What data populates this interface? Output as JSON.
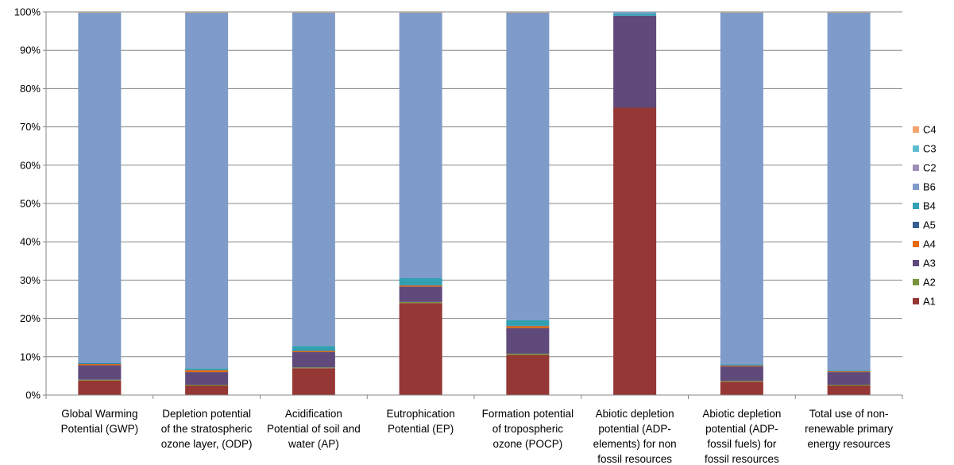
{
  "chart_data": {
    "type": "bar",
    "stacked": true,
    "percent": true,
    "ylim": [
      0,
      100
    ],
    "y_ticks": [
      "0%",
      "10%",
      "20%",
      "30%",
      "40%",
      "50%",
      "60%",
      "70%",
      "80%",
      "90%",
      "100%"
    ],
    "grid": true,
    "legend_position": "right",
    "categories": [
      [
        "Global Warming",
        "Potential (GWP)"
      ],
      [
        "Depletion potential",
        "of the stratospheric",
        "ozone layer,  (ODP)"
      ],
      [
        "Acidification",
        "Potential of soil and",
        "water (AP)"
      ],
      [
        "Eutrophication",
        "Potential (EP)"
      ],
      [
        "Formation potential",
        "of tropospheric",
        "ozone (POCP)"
      ],
      [
        "Abiotic depletion",
        "potential (ADP-",
        "elements) for non",
        "fossil resources"
      ],
      [
        "Abiotic depletion",
        "potential (ADP-",
        "fossil fuels) for",
        "fossil resources"
      ],
      [
        "Total use of non-",
        "renewable primary",
        "energy  resources"
      ]
    ],
    "series": [
      {
        "name": "A1",
        "color": "#953735",
        "values": [
          3.8,
          2.5,
          7.0,
          24.0,
          10.5,
          75.0,
          3.5,
          2.5
        ]
      },
      {
        "name": "A2",
        "color": "#77933c",
        "values": [
          0.2,
          0.2,
          0.2,
          0.3,
          0.3,
          0.0,
          0.2,
          0.2
        ]
      },
      {
        "name": "A3",
        "color": "#604a7b",
        "values": [
          3.8,
          3.3,
          4.0,
          4.0,
          6.7,
          24.0,
          3.8,
          3.3
        ]
      },
      {
        "name": "A4",
        "color": "#e46c0a",
        "values": [
          0.3,
          0.5,
          0.3,
          0.3,
          0.5,
          0.0,
          0.2,
          0.2
        ]
      },
      {
        "name": "A5",
        "color": "#376092",
        "values": [
          0.1,
          0.1,
          0.1,
          0.1,
          0.1,
          0.0,
          0.1,
          0.1
        ]
      },
      {
        "name": "B4",
        "color": "#31a0b3",
        "values": [
          0.2,
          0.4,
          1.2,
          1.8,
          1.4,
          0.5,
          0.2,
          0.2
        ]
      },
      {
        "name": "B6",
        "color": "#7f9bc9",
        "values": [
          91.4,
          92.8,
          86.9,
          69.2,
          80.2,
          0.4,
          91.7,
          93.3
        ]
      },
      {
        "name": "C2",
        "color": "#9e8fb8",
        "values": [
          0.1,
          0.1,
          0.1,
          0.1,
          0.1,
          0.0,
          0.1,
          0.1
        ]
      },
      {
        "name": "C3",
        "color": "#5cbcd1",
        "values": [
          0.05,
          0.05,
          0.1,
          0.1,
          0.2,
          0.1,
          0.1,
          0.05
        ]
      },
      {
        "name": "C4",
        "color": "#f4a46c",
        "values": [
          0.05,
          0.05,
          0.1,
          0.1,
          0.1,
          0.0,
          0.1,
          0.05
        ]
      }
    ],
    "legend_order": [
      "C4",
      "C3",
      "C2",
      "B6",
      "B4",
      "A5",
      "A4",
      "A3",
      "A2",
      "A1"
    ]
  }
}
